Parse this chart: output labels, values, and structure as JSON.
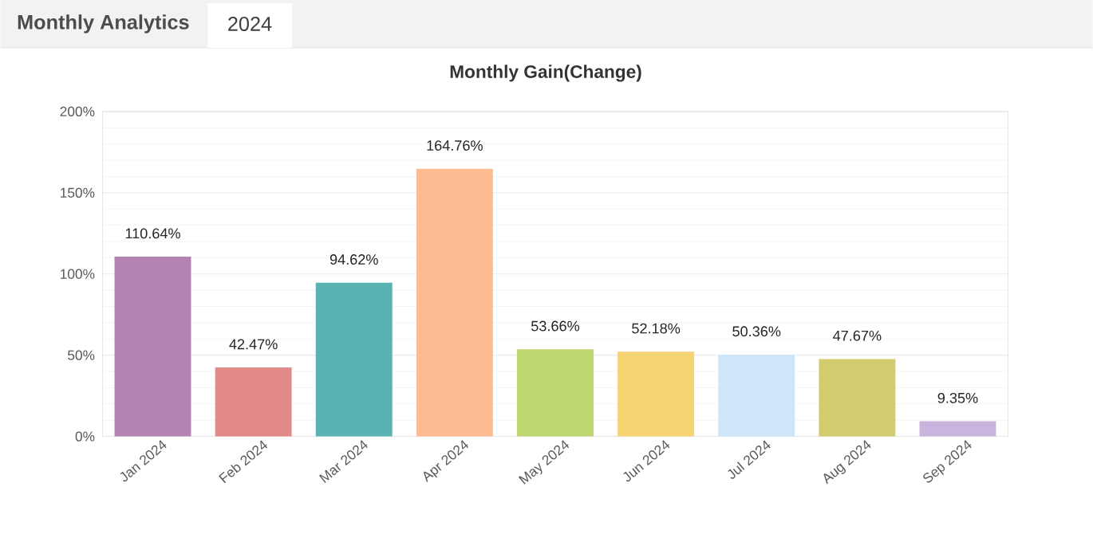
{
  "chart_data": {
    "type": "bar",
    "title": "Monthly Gain(Change)",
    "annotations": [
      "Monthly Analytics",
      "2024"
    ],
    "categories": [
      "Jan 2024",
      "Feb 2024",
      "Mar 2024",
      "Apr 2024",
      "May 2024",
      "Jun 2024",
      "Jul 2024",
      "Aug 2024",
      "Sep 2024"
    ],
    "values": [
      110.64,
      42.47,
      94.62,
      164.76,
      53.66,
      52.18,
      50.36,
      47.67,
      9.35
    ],
    "value_labels": [
      "110.64%",
      "42.47%",
      "94.62%",
      "164.76%",
      "53.66%",
      "52.18%",
      "50.36%",
      "47.67%",
      "9.35%"
    ],
    "colors": [
      "#b384b3",
      "#e28a87",
      "#5ab3b3",
      "#ffbb91",
      "#bdd66e",
      "#f5d272",
      "#cfe5f8",
      "#d2cc6e",
      "#c8b4dc"
    ],
    "ylim": [
      0,
      200
    ],
    "yticks": [
      {
        "value": 0,
        "label": "0%"
      },
      {
        "value": 50,
        "label": "50%"
      },
      {
        "value": 100,
        "label": "100%"
      },
      {
        "value": 150,
        "label": "150%"
      },
      {
        "value": 200,
        "label": "200%"
      }
    ],
    "grid": "y"
  }
}
